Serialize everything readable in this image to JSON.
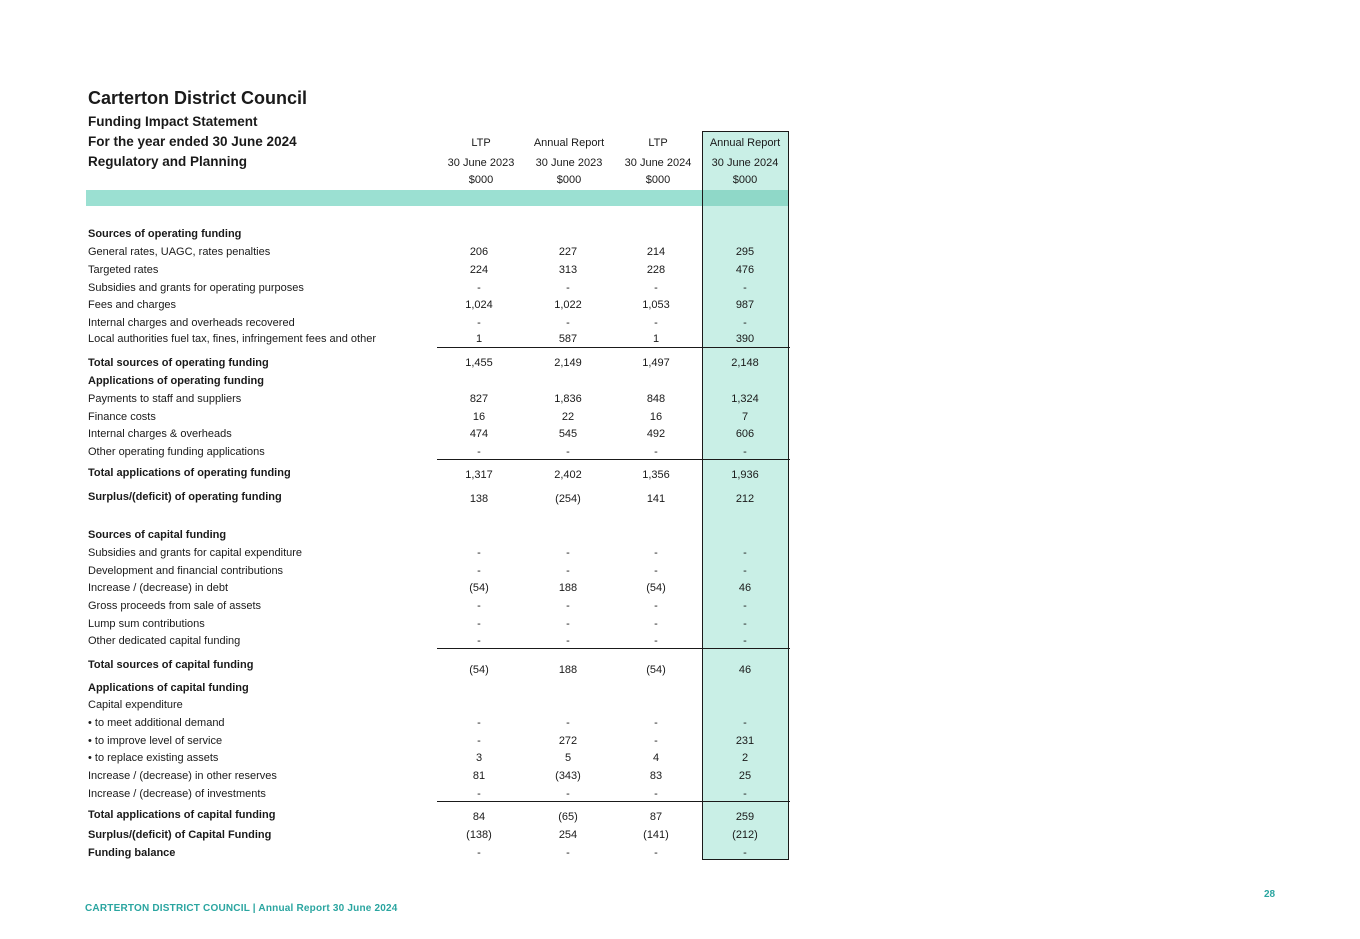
{
  "header": {
    "org": "Carterton District Council",
    "statement": "Funding Impact Statement",
    "period": "For the year ended 30 June 2024",
    "activity": "Regulatory and Planning"
  },
  "columns": [
    {
      "line1": "LTP",
      "line2": "30 June 2023",
      "line3": "$000"
    },
    {
      "line1": "Annual Report",
      "line2": "30 June 2023",
      "line3": "$000"
    },
    {
      "line1": "LTP",
      "line2": "30 June 2024",
      "line3": "$000"
    },
    {
      "line1": "Annual Report",
      "line2": "30 June 2024",
      "line3": "$000"
    }
  ],
  "rows": [
    {
      "label": "Sources of operating funding",
      "bold": true,
      "values": [
        "",
        "",
        "",
        ""
      ]
    },
    {
      "label": "General rates, UAGC, rates penalties",
      "bold": false,
      "values": [
        "206",
        "227",
        "214",
        "295"
      ]
    },
    {
      "label": "Targeted rates",
      "bold": false,
      "values": [
        "224",
        "313",
        "228",
        "476"
      ]
    },
    {
      "label": "Subsidies and grants for operating purposes",
      "bold": false,
      "values": [
        "-",
        "-",
        "-",
        "-"
      ]
    },
    {
      "label": "Fees and charges",
      "bold": false,
      "values": [
        "1,024",
        "1,022",
        "1,053",
        "987"
      ]
    },
    {
      "label": "Internal charges and overheads recovered",
      "bold": false,
      "values": [
        "-",
        "-",
        "-",
        "-"
      ]
    },
    {
      "label": "Local authorities fuel tax, fines, infringement fees and other",
      "bold": false,
      "values": [
        "1",
        "587",
        "1",
        "390"
      ]
    },
    {
      "label": "Total sources of operating funding",
      "bold": true,
      "values": [
        "1,455",
        "2,149",
        "1,497",
        "2,148"
      ]
    },
    {
      "label": "Applications of operating funding",
      "bold": true,
      "values": [
        "",
        "",
        "",
        ""
      ]
    },
    {
      "label": "Payments to staff and suppliers",
      "bold": false,
      "values": [
        "827",
        "1,836",
        "848",
        "1,324"
      ]
    },
    {
      "label": "Finance costs",
      "bold": false,
      "values": [
        "16",
        "22",
        "16",
        "7"
      ]
    },
    {
      "label": "Internal charges & overheads",
      "bold": false,
      "values": [
        "474",
        "545",
        "492",
        "606"
      ]
    },
    {
      "label": "Other operating funding applications",
      "bold": false,
      "values": [
        "-",
        "-",
        "-",
        "-"
      ]
    },
    {
      "label": "Total applications of operating funding",
      "bold": true,
      "values": [
        "1,317",
        "2,402",
        "1,356",
        "1,936"
      ]
    },
    {
      "label": "Surplus/(deficit) of operating funding",
      "bold": true,
      "values": [
        "138",
        "(254)",
        "141",
        "212"
      ]
    },
    {
      "label": "Sources of capital funding",
      "bold": true,
      "values": [
        "",
        "",
        "",
        ""
      ]
    },
    {
      "label": "Subsidies and grants for capital expenditure",
      "bold": false,
      "values": [
        "-",
        "-",
        "-",
        "-"
      ]
    },
    {
      "label": "Development and financial contributions",
      "bold": false,
      "values": [
        "-",
        "-",
        "-",
        "-"
      ]
    },
    {
      "label": "Increase / (decrease) in debt",
      "bold": false,
      "values": [
        "(54)",
        "188",
        "(54)",
        "46"
      ]
    },
    {
      "label": "Gross proceeds from sale of assets",
      "bold": false,
      "values": [
        "-",
        "-",
        "-",
        "-"
      ]
    },
    {
      "label": "Lump sum contributions",
      "bold": false,
      "values": [
        "-",
        "-",
        "-",
        "-"
      ]
    },
    {
      "label": "Other dedicated capital funding",
      "bold": false,
      "values": [
        "-",
        "-",
        "-",
        "-"
      ]
    },
    {
      "label": "Total sources of capital funding",
      "bold": true,
      "values": [
        "(54)",
        "188",
        "(54)",
        "46"
      ]
    },
    {
      "label": "Applications of capital funding",
      "bold": true,
      "values": [
        "",
        "",
        "",
        ""
      ]
    },
    {
      "label": "Capital expenditure",
      "bold": false,
      "values": [
        "",
        "",
        "",
        ""
      ]
    },
    {
      "label": "• to meet additional demand",
      "bold": false,
      "values": [
        "-",
        "-",
        "-",
        "-"
      ]
    },
    {
      "label": "• to improve level of service",
      "bold": false,
      "values": [
        "-",
        "272",
        "-",
        "231"
      ]
    },
    {
      "label": "• to replace existing assets",
      "bold": false,
      "values": [
        "3",
        "5",
        "4",
        "2"
      ]
    },
    {
      "label": "Increase / (decrease) in other reserves",
      "bold": false,
      "values": [
        "81",
        "(343)",
        "83",
        "25"
      ]
    },
    {
      "label": "Increase / (decrease) of investments",
      "bold": false,
      "values": [
        "-",
        "-",
        "-",
        "-"
      ]
    },
    {
      "label": "Total applications of capital funding",
      "bold": true,
      "values": [
        "84",
        "(65)",
        "87",
        "259"
      ]
    },
    {
      "label": "Surplus/(deficit) of Capital Funding",
      "bold": true,
      "values": [
        "(138)",
        "254",
        "(141)",
        "(212)"
      ]
    },
    {
      "label": "Funding balance",
      "bold": true,
      "values": [
        "-",
        "-",
        "-",
        "-"
      ]
    }
  ],
  "footer": {
    "text": "CARTERTON DISTRICT COUNCIL | Annual Report 30 June 2024",
    "page": "28"
  },
  "colors": {
    "highlight": "#c9efe6",
    "band": "#9be0d2",
    "accent": "#2aa5a0"
  }
}
